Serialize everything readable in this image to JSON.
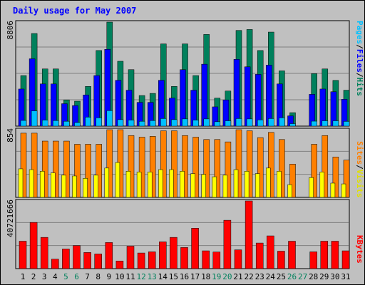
{
  "chart_data": [
    {
      "type": "bar",
      "title": "Daily usage for May 2007",
      "categories": [
        "1",
        "2",
        "3",
        "4",
        "5",
        "6",
        "7",
        "8",
        "9",
        "10",
        "11",
        "12",
        "13",
        "14",
        "15",
        "16",
        "17",
        "18",
        "19",
        "20",
        "21",
        "22",
        "23",
        "24",
        "25",
        "26",
        "27",
        "28",
        "29",
        "30",
        "31"
      ],
      "weekend_days": [
        "5",
        "6",
        "12",
        "13",
        "19",
        "20",
        "26",
        "27"
      ],
      "ymax_label": "8806",
      "ymax": 8806,
      "series": [
        {
          "name": "Hits",
          "color": "#00805c",
          "values": [
            4280,
            7840,
            4840,
            4840,
            2220,
            2110,
            3360,
            6400,
            8806,
            5490,
            4780,
            2590,
            2770,
            6960,
            3360,
            6960,
            4280,
            7760,
            2370,
            2970,
            8100,
            8180,
            6400,
            7960,
            4680,
            1140,
            null,
            4440,
            4840,
            3870,
            3040
          ]
        },
        {
          "name": "Files",
          "color": "#0000ff",
          "values": [
            3140,
            5700,
            3570,
            3570,
            1900,
            1740,
            2640,
            4280,
            6500,
            3880,
            3040,
            2010,
            2010,
            3880,
            2370,
            4780,
            3040,
            5240,
            1630,
            2220,
            5650,
            5020,
            4380,
            5160,
            3570,
            870,
            null,
            2690,
            3140,
            2910,
            2270
          ]
        },
        {
          "name": "Pages",
          "color": "#00c0ff",
          "values": [
            480,
            1290,
            510,
            470,
            410,
            300,
            760,
            700,
            1310,
            550,
            510,
            410,
            470,
            640,
            550,
            610,
            510,
            610,
            370,
            450,
            640,
            610,
            530,
            640,
            700,
            210,
            null,
            420,
            450,
            450,
            400
          ]
        }
      ]
    },
    {
      "type": "bar",
      "ymax_label": "854",
      "ymax": 854,
      "categories": [
        "1",
        "2",
        "3",
        "4",
        "5",
        "6",
        "7",
        "8",
        "9",
        "10",
        "11",
        "12",
        "13",
        "14",
        "15",
        "16",
        "17",
        "18",
        "19",
        "20",
        "21",
        "22",
        "23",
        "24",
        "25",
        "26",
        "27",
        "28",
        "29",
        "30",
        "31"
      ],
      "series": [
        {
          "name": "Visits",
          "color": "#ff8000",
          "values": [
            810,
            810,
            710,
            710,
            710,
            670,
            670,
            670,
            854,
            854,
            780,
            760,
            770,
            840,
            840,
            780,
            760,
            730,
            730,
            700,
            854,
            840,
            754,
            820,
            730,
            420,
            null,
            670,
            780,
            510,
            470
          ]
        },
        {
          "name": "Sites",
          "color": "#ffff00",
          "values": [
            360,
            350,
            330,
            310,
            280,
            270,
            240,
            280,
            370,
            440,
            330,
            320,
            320,
            350,
            350,
            330,
            300,
            290,
            260,
            280,
            350,
            330,
            300,
            370,
            330,
            160,
            null,
            250,
            320,
            180,
            170
          ]
        }
      ]
    },
    {
      "type": "bar",
      "ymax_label": "40721666",
      "ymax": 40721666,
      "categories": [
        "1",
        "2",
        "3",
        "4",
        "5",
        "6",
        "7",
        "8",
        "9",
        "10",
        "11",
        "12",
        "13",
        "14",
        "15",
        "16",
        "17",
        "18",
        "19",
        "20",
        "21",
        "22",
        "23",
        "24",
        "25",
        "26",
        "27",
        "28",
        "29",
        "30",
        "31"
      ],
      "series": [
        {
          "name": "KBytes",
          "color": "#ff0000",
          "values": [
            16500,
            27800,
            18800,
            5700,
            11800,
            13900,
            9700,
            8800,
            15700,
            4600,
            13500,
            9400,
            10100,
            16100,
            18800,
            12700,
            24300,
            10700,
            10000,
            29100,
            11300,
            40721,
            15400,
            19700,
            10500,
            16500,
            null,
            10100,
            16500,
            16500,
            10700
          ]
        }
      ]
    }
  ],
  "legend": {
    "hits": "Hits",
    "files": "Files",
    "pages": "Pages",
    "visits": "Visits",
    "sites": "Sites",
    "kbytes": "KBytes",
    "sep": "/"
  },
  "colors": {
    "background": "#c0c0c0",
    "title": "#0000ff",
    "weekday_label": "#000000",
    "weekend_label": "#00805c",
    "grid": "#808080"
  }
}
